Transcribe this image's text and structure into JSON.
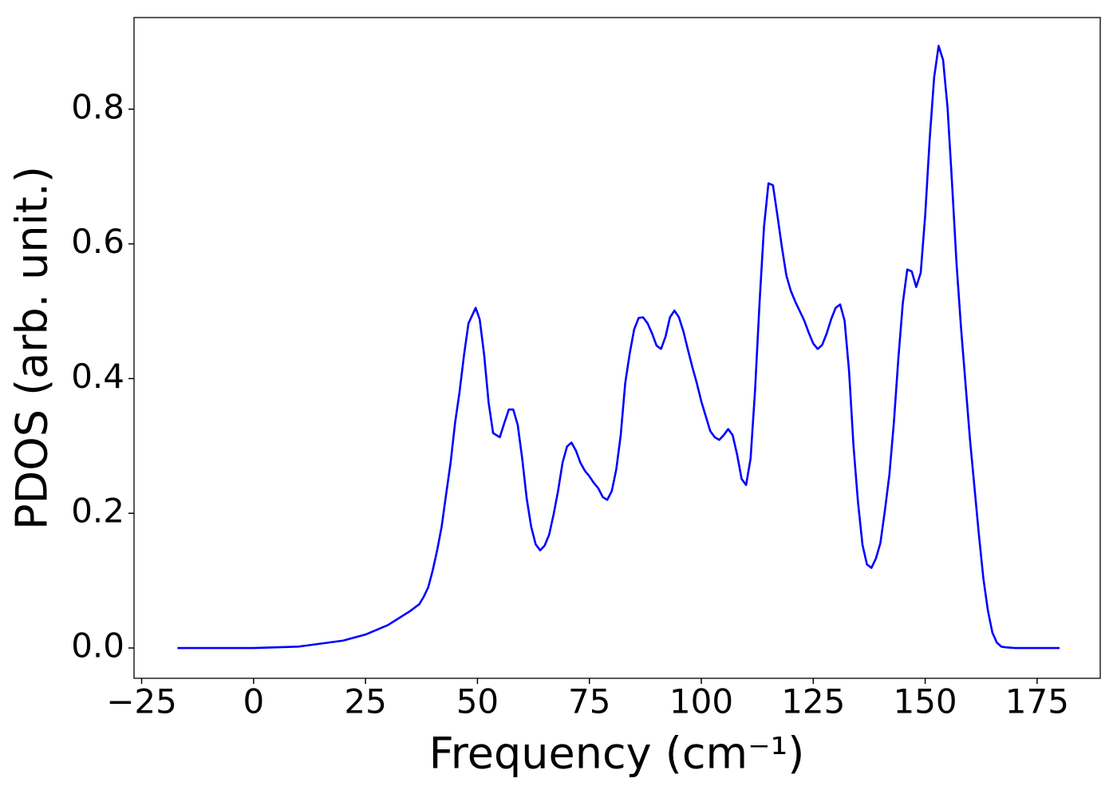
{
  "chart_data": {
    "type": "line",
    "xlabel": "Frequency (cm⁻¹)",
    "ylabel": "PDOS (arb. unit.)",
    "xlim": [
      -26.7,
      189.1
    ],
    "ylim": [
      -0.045,
      0.936
    ],
    "xticks": [
      {
        "value": -25,
        "label": "−25"
      },
      0,
      25,
      50,
      75,
      100,
      125,
      150,
      175
    ],
    "yticks": [
      {
        "value": 0,
        "label": "0.0"
      },
      0.2,
      0.4,
      0.6,
      0.8
    ],
    "grid": false,
    "series": [
      {
        "name": "PDOS",
        "color": "#0000ff",
        "x": [
          -17,
          0,
          10,
          20,
          25,
          30,
          35,
          37,
          38,
          39,
          40,
          41,
          42,
          43,
          44,
          45,
          46,
          47,
          48,
          49.6,
          50.5,
          51.5,
          52.5,
          53.5,
          55,
          56,
          57,
          58,
          59,
          60,
          61,
          62,
          63,
          64,
          65,
          66,
          67,
          68,
          69,
          70,
          71,
          72,
          73,
          74,
          75,
          76,
          77,
          78,
          79,
          80,
          81,
          82,
          83,
          84,
          85,
          86,
          87,
          88,
          89,
          90,
          91,
          92,
          93,
          94,
          95,
          96,
          97,
          98,
          99,
          100,
          101,
          102,
          103,
          104,
          105,
          106,
          107,
          108,
          109,
          110,
          111,
          112,
          113,
          114,
          115,
          116,
          117,
          118,
          119,
          120,
          121,
          122,
          123,
          124,
          125,
          126,
          127,
          128,
          129,
          130,
          131,
          132,
          133,
          134,
          135,
          136,
          137,
          138,
          139,
          140,
          141,
          142,
          143,
          144,
          145,
          146,
          147,
          148,
          149,
          150,
          151,
          152,
          153,
          154,
          155,
          156,
          157,
          158,
          159,
          160,
          161,
          162,
          163,
          164,
          165,
          166,
          167,
          168,
          170,
          180
        ],
        "values": [
          0,
          0,
          0.002,
          0.011,
          0.02,
          0.034,
          0.055,
          0.065,
          0.076,
          0.09,
          0.115,
          0.145,
          0.18,
          0.228,
          0.275,
          0.334,
          0.38,
          0.435,
          0.482,
          0.505,
          0.488,
          0.435,
          0.364,
          0.319,
          0.313,
          0.334,
          0.354,
          0.354,
          0.331,
          0.281,
          0.222,
          0.18,
          0.154,
          0.145,
          0.152,
          0.168,
          0.198,
          0.233,
          0.275,
          0.299,
          0.305,
          0.293,
          0.275,
          0.263,
          0.255,
          0.245,
          0.237,
          0.224,
          0.22,
          0.233,
          0.265,
          0.316,
          0.393,
          0.437,
          0.473,
          0.49,
          0.491,
          0.482,
          0.467,
          0.449,
          0.444,
          0.462,
          0.491,
          0.501,
          0.491,
          0.47,
          0.443,
          0.417,
          0.393,
          0.366,
          0.344,
          0.322,
          0.313,
          0.309,
          0.316,
          0.325,
          0.316,
          0.287,
          0.251,
          0.242,
          0.281,
          0.382,
          0.512,
          0.625,
          0.69,
          0.687,
          0.642,
          0.595,
          0.553,
          0.53,
          0.514,
          0.5,
          0.486,
          0.468,
          0.452,
          0.444,
          0.45,
          0.467,
          0.488,
          0.505,
          0.51,
          0.486,
          0.411,
          0.299,
          0.216,
          0.153,
          0.124,
          0.119,
          0.133,
          0.156,
          0.204,
          0.257,
          0.334,
          0.429,
          0.512,
          0.562,
          0.559,
          0.536,
          0.557,
          0.642,
          0.755,
          0.847,
          0.894,
          0.873,
          0.802,
          0.69,
          0.571,
          0.476,
          0.393,
          0.31,
          0.239,
          0.168,
          0.103,
          0.056,
          0.023,
          0.008,
          0.002,
          0.001,
          0,
          0
        ]
      }
    ]
  }
}
